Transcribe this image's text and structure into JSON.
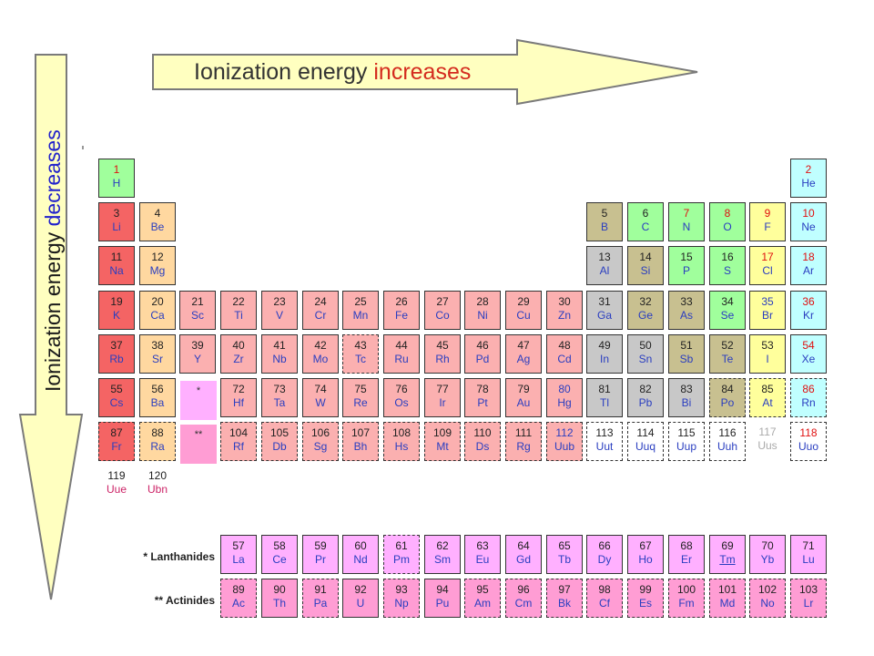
{
  "header": {
    "horizontal": {
      "prefix": "Ionization energy ",
      "emph": "increases",
      "prefix_color": "#333333",
      "emph_color": "#d42b1e"
    },
    "vertical": {
      "prefix": "Ionization energy ",
      "emph": "decreases",
      "prefix_color": "#1a1a1a",
      "emph_color": "#2222cc"
    },
    "arrow_fill": "#ffffc0",
    "arrow_stroke": "#7a7a7a"
  },
  "colors": {
    "alkali": "#f46464",
    "alkaline": "#ffd8a0",
    "transition": "#fbb0b0",
    "lanthanide": "#ffb0ff",
    "actinide": "#ff9dd4",
    "poor_metal": "#c8c8c8",
    "metalloid": "#c8c090",
    "nonmetal": "#a0ff9c",
    "halogen": "#ffff9c",
    "noble_gas": "#c0ffff",
    "unknown": "#ffffff",
    "text_blue": "#2a3ec0",
    "text_red": "#e01010",
    "text_gray": "#aaaaaa",
    "text_dark": "#222222",
    "text_pink": "#cc2266"
  },
  "markers": {
    "lanthanide_marker": "*",
    "actinide_marker": "**"
  },
  "series_labels": {
    "lanthanides": "* Lanthanides",
    "actinides": "** Actinides"
  },
  "elements": [
    {
      "n": "1",
      "s": "H",
      "r": 1,
      "c": 1,
      "cat": "nonmetal",
      "nc": "red"
    },
    {
      "n": "2",
      "s": "He",
      "r": 1,
      "c": 18,
      "cat": "noble_gas",
      "nc": "red"
    },
    {
      "n": "3",
      "s": "Li",
      "r": 2,
      "c": 1,
      "cat": "alkali",
      "nc": "dark"
    },
    {
      "n": "4",
      "s": "Be",
      "r": 2,
      "c": 2,
      "cat": "alkaline",
      "nc": "dark"
    },
    {
      "n": "5",
      "s": "B",
      "r": 2,
      "c": 13,
      "cat": "metalloid",
      "nc": "dark"
    },
    {
      "n": "6",
      "s": "C",
      "r": 2,
      "c": 14,
      "cat": "nonmetal",
      "nc": "dark"
    },
    {
      "n": "7",
      "s": "N",
      "r": 2,
      "c": 15,
      "cat": "nonmetal",
      "nc": "red"
    },
    {
      "n": "8",
      "s": "O",
      "r": 2,
      "c": 16,
      "cat": "nonmetal",
      "nc": "red"
    },
    {
      "n": "9",
      "s": "F",
      "r": 2,
      "c": 17,
      "cat": "halogen",
      "nc": "red"
    },
    {
      "n": "10",
      "s": "Ne",
      "r": 2,
      "c": 18,
      "cat": "noble_gas",
      "nc": "red"
    },
    {
      "n": "11",
      "s": "Na",
      "r": 3,
      "c": 1,
      "cat": "alkali",
      "nc": "dark"
    },
    {
      "n": "12",
      "s": "Mg",
      "r": 3,
      "c": 2,
      "cat": "alkaline",
      "nc": "dark"
    },
    {
      "n": "13",
      "s": "Al",
      "r": 3,
      "c": 13,
      "cat": "poor_metal",
      "nc": "dark"
    },
    {
      "n": "14",
      "s": "Si",
      "r": 3,
      "c": 14,
      "cat": "metalloid",
      "nc": "dark"
    },
    {
      "n": "15",
      "s": "P",
      "r": 3,
      "c": 15,
      "cat": "nonmetal",
      "nc": "dark"
    },
    {
      "n": "16",
      "s": "S",
      "r": 3,
      "c": 16,
      "cat": "nonmetal",
      "nc": "dark"
    },
    {
      "n": "17",
      "s": "Cl",
      "r": 3,
      "c": 17,
      "cat": "halogen",
      "nc": "red"
    },
    {
      "n": "18",
      "s": "Ar",
      "r": 3,
      "c": 18,
      "cat": "noble_gas",
      "nc": "red"
    },
    {
      "n": "19",
      "s": "K",
      "r": 4,
      "c": 1,
      "cat": "alkali",
      "nc": "dark"
    },
    {
      "n": "20",
      "s": "Ca",
      "r": 4,
      "c": 2,
      "cat": "alkaline",
      "nc": "dark"
    },
    {
      "n": "21",
      "s": "Sc",
      "r": 4,
      "c": 3,
      "cat": "transition",
      "nc": "dark"
    },
    {
      "n": "22",
      "s": "Ti",
      "r": 4,
      "c": 4,
      "cat": "transition",
      "nc": "dark"
    },
    {
      "n": "23",
      "s": "V",
      "r": 4,
      "c": 5,
      "cat": "transition",
      "nc": "dark"
    },
    {
      "n": "24",
      "s": "Cr",
      "r": 4,
      "c": 6,
      "cat": "transition",
      "nc": "dark"
    },
    {
      "n": "25",
      "s": "Mn",
      "r": 4,
      "c": 7,
      "cat": "transition",
      "nc": "dark"
    },
    {
      "n": "26",
      "s": "Fe",
      "r": 4,
      "c": 8,
      "cat": "transition",
      "nc": "dark"
    },
    {
      "n": "27",
      "s": "Co",
      "r": 4,
      "c": 9,
      "cat": "transition",
      "nc": "dark"
    },
    {
      "n": "28",
      "s": "Ni",
      "r": 4,
      "c": 10,
      "cat": "transition",
      "nc": "dark"
    },
    {
      "n": "29",
      "s": "Cu",
      "r": 4,
      "c": 11,
      "cat": "transition",
      "nc": "dark"
    },
    {
      "n": "30",
      "s": "Zn",
      "r": 4,
      "c": 12,
      "cat": "transition",
      "nc": "dark"
    },
    {
      "n": "31",
      "s": "Ga",
      "r": 4,
      "c": 13,
      "cat": "poor_metal",
      "nc": "dark"
    },
    {
      "n": "32",
      "s": "Ge",
      "r": 4,
      "c": 14,
      "cat": "metalloid",
      "nc": "dark"
    },
    {
      "n": "33",
      "s": "As",
      "r": 4,
      "c": 15,
      "cat": "metalloid",
      "nc": "dark"
    },
    {
      "n": "34",
      "s": "Se",
      "r": 4,
      "c": 16,
      "cat": "nonmetal",
      "nc": "dark"
    },
    {
      "n": "35",
      "s": "Br",
      "r": 4,
      "c": 17,
      "cat": "halogen",
      "nc": "blue"
    },
    {
      "n": "36",
      "s": "Kr",
      "r": 4,
      "c": 18,
      "cat": "noble_gas",
      "nc": "red"
    },
    {
      "n": "37",
      "s": "Rb",
      "r": 5,
      "c": 1,
      "cat": "alkali",
      "nc": "dark"
    },
    {
      "n": "38",
      "s": "Sr",
      "r": 5,
      "c": 2,
      "cat": "alkaline",
      "nc": "dark"
    },
    {
      "n": "39",
      "s": "Y",
      "r": 5,
      "c": 3,
      "cat": "transition",
      "nc": "dark"
    },
    {
      "n": "40",
      "s": "Zr",
      "r": 5,
      "c": 4,
      "cat": "transition",
      "nc": "dark"
    },
    {
      "n": "41",
      "s": "Nb",
      "r": 5,
      "c": 5,
      "cat": "transition",
      "nc": "dark"
    },
    {
      "n": "42",
      "s": "Mo",
      "r": 5,
      "c": 6,
      "cat": "transition",
      "nc": "dark"
    },
    {
      "n": "43",
      "s": "Tc",
      "r": 5,
      "c": 7,
      "cat": "transition",
      "nc": "dark",
      "dash": true
    },
    {
      "n": "44",
      "s": "Ru",
      "r": 5,
      "c": 8,
      "cat": "transition",
      "nc": "dark"
    },
    {
      "n": "45",
      "s": "Rh",
      "r": 5,
      "c": 9,
      "cat": "transition",
      "nc": "dark"
    },
    {
      "n": "46",
      "s": "Pd",
      "r": 5,
      "c": 10,
      "cat": "transition",
      "nc": "dark"
    },
    {
      "n": "47",
      "s": "Ag",
      "r": 5,
      "c": 11,
      "cat": "transition",
      "nc": "dark"
    },
    {
      "n": "48",
      "s": "Cd",
      "r": 5,
      "c": 12,
      "cat": "transition",
      "nc": "dark"
    },
    {
      "n": "49",
      "s": "In",
      "r": 5,
      "c": 13,
      "cat": "poor_metal",
      "nc": "dark"
    },
    {
      "n": "50",
      "s": "Sn",
      "r": 5,
      "c": 14,
      "cat": "poor_metal",
      "nc": "dark"
    },
    {
      "n": "51",
      "s": "Sb",
      "r": 5,
      "c": 15,
      "cat": "metalloid",
      "nc": "dark"
    },
    {
      "n": "52",
      "s": "Te",
      "r": 5,
      "c": 16,
      "cat": "metalloid",
      "nc": "dark"
    },
    {
      "n": "53",
      "s": "I",
      "r": 5,
      "c": 17,
      "cat": "halogen",
      "nc": "dark"
    },
    {
      "n": "54",
      "s": "Xe",
      "r": 5,
      "c": 18,
      "cat": "noble_gas",
      "nc": "red"
    },
    {
      "n": "55",
      "s": "Cs",
      "r": 6,
      "c": 1,
      "cat": "alkali",
      "nc": "dark"
    },
    {
      "n": "56",
      "s": "Ba",
      "r": 6,
      "c": 2,
      "cat": "alkaline",
      "nc": "dark"
    },
    {
      "n": "72",
      "s": "Hf",
      "r": 6,
      "c": 4,
      "cat": "transition",
      "nc": "dark"
    },
    {
      "n": "73",
      "s": "Ta",
      "r": 6,
      "c": 5,
      "cat": "transition",
      "nc": "dark"
    },
    {
      "n": "74",
      "s": "W",
      "r": 6,
      "c": 6,
      "cat": "transition",
      "nc": "dark"
    },
    {
      "n": "75",
      "s": "Re",
      "r": 6,
      "c": 7,
      "cat": "transition",
      "nc": "dark"
    },
    {
      "n": "76",
      "s": "Os",
      "r": 6,
      "c": 8,
      "cat": "transition",
      "nc": "dark"
    },
    {
      "n": "77",
      "s": "Ir",
      "r": 6,
      "c": 9,
      "cat": "transition",
      "nc": "dark"
    },
    {
      "n": "78",
      "s": "Pt",
      "r": 6,
      "c": 10,
      "cat": "transition",
      "nc": "dark"
    },
    {
      "n": "79",
      "s": "Au",
      "r": 6,
      "c": 11,
      "cat": "transition",
      "nc": "dark"
    },
    {
      "n": "80",
      "s": "Hg",
      "r": 6,
      "c": 12,
      "cat": "transition",
      "nc": "blue"
    },
    {
      "n": "81",
      "s": "Tl",
      "r": 6,
      "c": 13,
      "cat": "poor_metal",
      "nc": "dark"
    },
    {
      "n": "82",
      "s": "Pb",
      "r": 6,
      "c": 14,
      "cat": "poor_metal",
      "nc": "dark"
    },
    {
      "n": "83",
      "s": "Bi",
      "r": 6,
      "c": 15,
      "cat": "poor_metal",
      "nc": "dark"
    },
    {
      "n": "84",
      "s": "Po",
      "r": 6,
      "c": 16,
      "cat": "metalloid",
      "nc": "dark",
      "dash": true
    },
    {
      "n": "85",
      "s": "At",
      "r": 6,
      "c": 17,
      "cat": "halogen",
      "nc": "dark",
      "dash": true
    },
    {
      "n": "86",
      "s": "Rn",
      "r": 6,
      "c": 18,
      "cat": "noble_gas",
      "nc": "red",
      "dash": true
    },
    {
      "n": "87",
      "s": "Fr",
      "r": 7,
      "c": 1,
      "cat": "alkali",
      "nc": "dark",
      "dash": true
    },
    {
      "n": "88",
      "s": "Ra",
      "r": 7,
      "c": 2,
      "cat": "alkaline",
      "nc": "dark",
      "dash": true
    },
    {
      "n": "104",
      "s": "Rf",
      "r": 7,
      "c": 4,
      "cat": "transition",
      "nc": "dark",
      "dash": true
    },
    {
      "n": "105",
      "s": "Db",
      "r": 7,
      "c": 5,
      "cat": "transition",
      "nc": "dark",
      "dash": true
    },
    {
      "n": "106",
      "s": "Sg",
      "r": 7,
      "c": 6,
      "cat": "transition",
      "nc": "dark",
      "dash": true
    },
    {
      "n": "107",
      "s": "Bh",
      "r": 7,
      "c": 7,
      "cat": "transition",
      "nc": "dark",
      "dash": true
    },
    {
      "n": "108",
      "s": "Hs",
      "r": 7,
      "c": 8,
      "cat": "transition",
      "nc": "dark",
      "dash": true
    },
    {
      "n": "109",
      "s": "Mt",
      "r": 7,
      "c": 9,
      "cat": "transition",
      "nc": "dark",
      "dash": true
    },
    {
      "n": "110",
      "s": "Ds",
      "r": 7,
      "c": 10,
      "cat": "transition",
      "nc": "dark",
      "dash": true
    },
    {
      "n": "111",
      "s": "Rg",
      "r": 7,
      "c": 11,
      "cat": "transition",
      "nc": "dark",
      "dash": true
    },
    {
      "n": "112",
      "s": "Uub",
      "r": 7,
      "c": 12,
      "cat": "transition",
      "nc": "blue",
      "dash": true
    },
    {
      "n": "113",
      "s": "Uut",
      "r": 7,
      "c": 13,
      "cat": "unknown",
      "nc": "dark",
      "dash": true
    },
    {
      "n": "114",
      "s": "Uuq",
      "r": 7,
      "c": 14,
      "cat": "unknown",
      "nc": "dark",
      "dash": true
    },
    {
      "n": "115",
      "s": "Uup",
      "r": 7,
      "c": 15,
      "cat": "unknown",
      "nc": "dark",
      "dash": true
    },
    {
      "n": "116",
      "s": "Uuh",
      "r": 7,
      "c": 16,
      "cat": "unknown",
      "nc": "dark",
      "dash": true
    },
    {
      "n": "117",
      "s": "Uus",
      "r": 7,
      "c": 17,
      "cat": "unknown",
      "nc": "gray",
      "plain": true
    },
    {
      "n": "118",
      "s": "Uuo",
      "r": 7,
      "c": 18,
      "cat": "unknown",
      "nc": "red",
      "dash": true
    },
    {
      "n": "119",
      "s": "Uue",
      "r": 8,
      "c": 1,
      "cat": "unknown",
      "nc": "dark",
      "plain": true,
      "sc": "pink"
    },
    {
      "n": "120",
      "s": "Ubn",
      "r": 8,
      "c": 2,
      "cat": "unknown",
      "nc": "dark",
      "plain": true,
      "sc": "pink"
    },
    {
      "n": "57",
      "s": "La",
      "r": 10,
      "c": 4,
      "cat": "lanthanide",
      "nc": "dark"
    },
    {
      "n": "58",
      "s": "Ce",
      "r": 10,
      "c": 5,
      "cat": "lanthanide",
      "nc": "dark"
    },
    {
      "n": "59",
      "s": "Pr",
      "r": 10,
      "c": 6,
      "cat": "lanthanide",
      "nc": "dark"
    },
    {
      "n": "60",
      "s": "Nd",
      "r": 10,
      "c": 7,
      "cat": "lanthanide",
      "nc": "dark"
    },
    {
      "n": "61",
      "s": "Pm",
      "r": 10,
      "c": 8,
      "cat": "lanthanide",
      "nc": "dark",
      "dash": true
    },
    {
      "n": "62",
      "s": "Sm",
      "r": 10,
      "c": 9,
      "cat": "lanthanide",
      "nc": "dark"
    },
    {
      "n": "63",
      "s": "Eu",
      "r": 10,
      "c": 10,
      "cat": "lanthanide",
      "nc": "dark"
    },
    {
      "n": "64",
      "s": "Gd",
      "r": 10,
      "c": 11,
      "cat": "lanthanide",
      "nc": "dark"
    },
    {
      "n": "65",
      "s": "Tb",
      "r": 10,
      "c": 12,
      "cat": "lanthanide",
      "nc": "dark"
    },
    {
      "n": "66",
      "s": "Dy",
      "r": 10,
      "c": 13,
      "cat": "lanthanide",
      "nc": "dark"
    },
    {
      "n": "67",
      "s": "Ho",
      "r": 10,
      "c": 14,
      "cat": "lanthanide",
      "nc": "dark"
    },
    {
      "n": "68",
      "s": "Er",
      "r": 10,
      "c": 15,
      "cat": "lanthanide",
      "nc": "dark"
    },
    {
      "n": "69",
      "s": "Tm",
      "r": 10,
      "c": 16,
      "cat": "lanthanide",
      "nc": "dark",
      "ul": true
    },
    {
      "n": "70",
      "s": "Yb",
      "r": 10,
      "c": 17,
      "cat": "lanthanide",
      "nc": "dark"
    },
    {
      "n": "71",
      "s": "Lu",
      "r": 10,
      "c": 18,
      "cat": "lanthanide",
      "nc": "dark"
    },
    {
      "n": "89",
      "s": "Ac",
      "r": 11,
      "c": 4,
      "cat": "actinide",
      "nc": "dark",
      "dash": true
    },
    {
      "n": "90",
      "s": "Th",
      "r": 11,
      "c": 5,
      "cat": "actinide",
      "nc": "dark"
    },
    {
      "n": "91",
      "s": "Pa",
      "r": 11,
      "c": 6,
      "cat": "actinide",
      "nc": "dark",
      "dash": true
    },
    {
      "n": "92",
      "s": "U",
      "r": 11,
      "c": 7,
      "cat": "actinide",
      "nc": "dark"
    },
    {
      "n": "93",
      "s": "Np",
      "r": 11,
      "c": 8,
      "cat": "actinide",
      "nc": "dark",
      "dash": true
    },
    {
      "n": "94",
      "s": "Pu",
      "r": 11,
      "c": 9,
      "cat": "actinide",
      "nc": "dark"
    },
    {
      "n": "95",
      "s": "Am",
      "r": 11,
      "c": 10,
      "cat": "actinide",
      "nc": "dark",
      "dash": true
    },
    {
      "n": "96",
      "s": "Cm",
      "r": 11,
      "c": 11,
      "cat": "actinide",
      "nc": "dark",
      "dash": true
    },
    {
      "n": "97",
      "s": "Bk",
      "r": 11,
      "c": 12,
      "cat": "actinide",
      "nc": "dark",
      "dash": true
    },
    {
      "n": "98",
      "s": "Cf",
      "r": 11,
      "c": 13,
      "cat": "actinide",
      "nc": "dark",
      "dash": true
    },
    {
      "n": "99",
      "s": "Es",
      "r": 11,
      "c": 14,
      "cat": "actinide",
      "nc": "dark",
      "dash": true
    },
    {
      "n": "100",
      "s": "Fm",
      "r": 11,
      "c": 15,
      "cat": "actinide",
      "nc": "dark",
      "dash": true
    },
    {
      "n": "101",
      "s": "Md",
      "r": 11,
      "c": 16,
      "cat": "actinide",
      "nc": "dark",
      "dash": true
    },
    {
      "n": "102",
      "s": "No",
      "r": 11,
      "c": 17,
      "cat": "actinide",
      "nc": "dark",
      "dash": true
    },
    {
      "n": "103",
      "s": "Lr",
      "r": 11,
      "c": 18,
      "cat": "actinide",
      "nc": "dark",
      "dash": true
    }
  ]
}
